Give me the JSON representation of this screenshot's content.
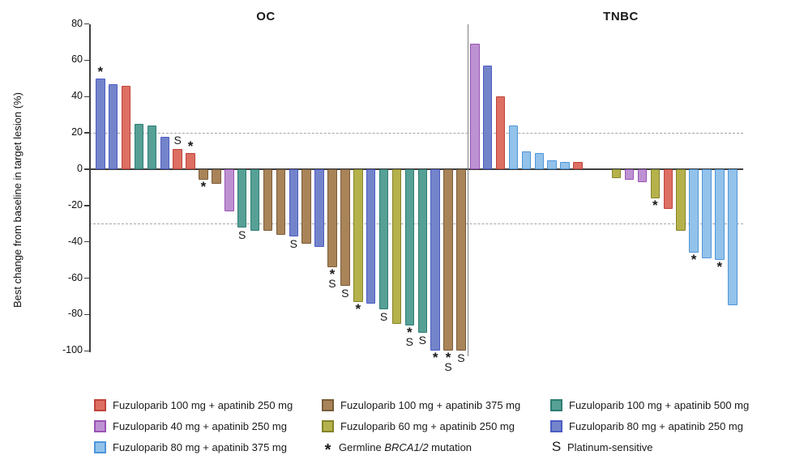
{
  "chart_data": {
    "type": "bar",
    "subtype": "waterfall",
    "ylabel": "Best change from baseline in target lesion (%)",
    "ylim": [
      -100,
      80
    ],
    "yticks": [
      80,
      60,
      40,
      20,
      0,
      -20,
      -40,
      -60,
      -80,
      -100
    ],
    "reference_lines": [
      20,
      -30
    ],
    "grid": "dashed-reference-only",
    "legend_position": "bottom",
    "groups": {
      "f100a250": {
        "label": "Fuzuloparib 100 mg + apatinib 250 mg",
        "fill": "#dd6f63",
        "border": "#bf443a"
      },
      "f100a375": {
        "label": "Fuzuloparib 100 mg + apatinib 375 mg",
        "fill": "#a98459",
        "border": "#7a5c39"
      },
      "f100a500": {
        "label": "Fuzuloparib 100 mg + apatinib 500 mg",
        "fill": "#56a096",
        "border": "#2f7d74"
      },
      "f40a250": {
        "label": "Fuzuloparib 40 mg + apatinib 250 mg",
        "fill": "#bd92d2",
        "border": "#9a52b5"
      },
      "f60a250": {
        "label": "Fuzuloparib 60 mg + apatinib 250 mg",
        "fill": "#b5b24c",
        "border": "#85832a"
      },
      "f80a250": {
        "label": "Fuzuloparib 80 mg + apatinib 250 mg",
        "fill": "#7484ca",
        "border": "#4c5cc5"
      },
      "f80a375": {
        "label": "Fuzuloparib 80 mg + apatinib 375 mg",
        "fill": "#93c2ea",
        "border": "#4e96d9"
      }
    },
    "markers": {
      "asterisk": {
        "symbol": "*",
        "label_parts": [
          "Germline ",
          "BRCA1/2",
          " mutation"
        ]
      },
      "sensitive": {
        "symbol": "S",
        "label": "Platinum-sensitive"
      }
    },
    "panels": [
      {
        "label": "OC",
        "bars": [
          {
            "group": "f80a250",
            "value": 50,
            "mark": "*"
          },
          {
            "group": "f80a250",
            "value": 47
          },
          {
            "group": "f100a250",
            "value": 46
          },
          {
            "group": "f100a500",
            "value": 25
          },
          {
            "group": "f100a500",
            "value": 24
          },
          {
            "group": "f80a250",
            "value": 18
          },
          {
            "group": "f100a250",
            "value": 11,
            "mark": "S"
          },
          {
            "group": "f100a250",
            "value": 9,
            "mark": "*"
          },
          {
            "group": "f100a375",
            "value": -6,
            "mark": "*"
          },
          {
            "group": "f100a375",
            "value": -8
          },
          {
            "group": "f40a250",
            "value": -23
          },
          {
            "group": "f100a500",
            "value": -32,
            "mark": "S"
          },
          {
            "group": "f100a500",
            "value": -34
          },
          {
            "group": "f100a375",
            "value": -34
          },
          {
            "group": "f100a375",
            "value": -36
          },
          {
            "group": "f80a250",
            "value": -37,
            "mark": "S"
          },
          {
            "group": "f100a375",
            "value": -41
          },
          {
            "group": "f80a250",
            "value": -43
          },
          {
            "group": "f100a375",
            "value": -54,
            "mark": "*S"
          },
          {
            "group": "f100a375",
            "value": -64,
            "mark": "S"
          },
          {
            "group": "f60a250",
            "value": -73,
            "mark": "*"
          },
          {
            "group": "f80a250",
            "value": -74
          },
          {
            "group": "f100a500",
            "value": -77,
            "mark": "S"
          },
          {
            "group": "f60a250",
            "value": -85
          },
          {
            "group": "f100a500",
            "value": -86,
            "mark": "*S"
          },
          {
            "group": "f100a500",
            "value": -90,
            "mark": "S"
          },
          {
            "group": "f80a250",
            "value": -100,
            "mark": "*"
          },
          {
            "group": "f100a375",
            "value": -100,
            "mark": "*S"
          },
          {
            "group": "f100a375",
            "value": -100,
            "mark": "S"
          }
        ]
      },
      {
        "label": "TNBC",
        "bars": [
          {
            "group": "f40a250",
            "value": 69
          },
          {
            "group": "f80a250",
            "value": 57
          },
          {
            "group": "f100a250",
            "value": 40
          },
          {
            "group": "f80a375",
            "value": 24
          },
          {
            "group": "f80a375",
            "value": 10
          },
          {
            "group": "f80a375",
            "value": 9
          },
          {
            "group": "f80a375",
            "value": 5
          },
          {
            "group": "f80a375",
            "value": 4
          },
          {
            "group": "f100a250",
            "value": 4
          },
          {
            "group": null,
            "value": 0
          },
          {
            "group": null,
            "value": 0
          },
          {
            "group": "f60a250",
            "value": -5
          },
          {
            "group": "f40a250",
            "value": -6
          },
          {
            "group": "f40a250",
            "value": -7
          },
          {
            "group": "f60a250",
            "value": -16,
            "mark": "*"
          },
          {
            "group": "f100a250",
            "value": -22
          },
          {
            "group": "f60a250",
            "value": -34
          },
          {
            "group": "f80a375",
            "value": -46,
            "mark": "*"
          },
          {
            "group": "f80a375",
            "value": -49
          },
          {
            "group": "f80a375",
            "value": -50,
            "mark": "*"
          },
          {
            "group": "f80a375",
            "value": -75
          }
        ]
      }
    ]
  },
  "legend": {
    "columns": [
      [
        {
          "group": "f100a250"
        },
        {
          "group": "f40a250"
        },
        {
          "group": "f80a375"
        }
      ],
      [
        {
          "group": "f100a375"
        },
        {
          "group": "f60a250"
        },
        {
          "marker": "asterisk"
        }
      ],
      [
        {
          "group": "f100a500"
        },
        {
          "group": "f80a250"
        },
        {
          "marker": "sensitive"
        }
      ]
    ]
  }
}
